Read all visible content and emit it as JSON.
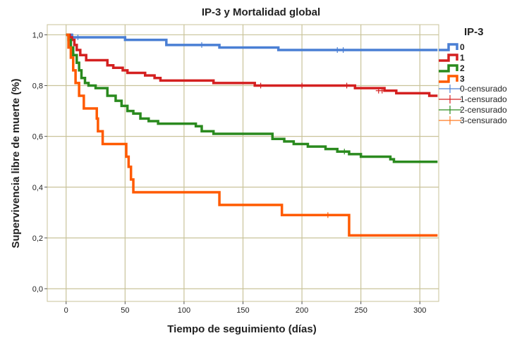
{
  "chart_data": {
    "type": "line",
    "step": true,
    "title": "IP-3 y Mortalidad global",
    "xlabel": "Tiempo de seguimiento (días)",
    "ylabel": "Supervivencia libre de muerte (%)",
    "xlim": [
      -16,
      316
    ],
    "ylim": [
      -0.05,
      1.04
    ],
    "xticks": [
      0,
      50,
      100,
      150,
      200,
      250,
      300
    ],
    "xtick_labels": [
      "0",
      "50",
      "100",
      "150",
      "200",
      "250",
      "300"
    ],
    "yticks": [
      0.0,
      0.2,
      0.4,
      0.6,
      0.8,
      1.0
    ],
    "ytick_labels": [
      "0,0",
      "0,2",
      "0,4",
      "0,6",
      "0,8",
      "1,0"
    ],
    "grid": true,
    "legend_title": "IP-3",
    "legend_position": "right",
    "series": [
      {
        "name": "0",
        "color": "#4a7fd4",
        "points": [
          [
            0,
            1.0
          ],
          [
            5,
            0.99
          ],
          [
            50,
            0.98
          ],
          [
            85,
            0.96
          ],
          [
            130,
            0.95
          ],
          [
            180,
            0.94
          ],
          [
            315,
            0.94
          ]
        ],
        "censored": [
          [
            10,
            0.99
          ],
          [
            115,
            0.96
          ],
          [
            230,
            0.94
          ],
          [
            235,
            0.94
          ]
        ]
      },
      {
        "name": "1",
        "color": "#d42020",
        "points": [
          [
            0,
            1.0
          ],
          [
            3,
            0.99
          ],
          [
            5,
            0.98
          ],
          [
            7,
            0.96
          ],
          [
            9,
            0.94
          ],
          [
            12,
            0.92
          ],
          [
            17,
            0.9
          ],
          [
            35,
            0.88
          ],
          [
            40,
            0.87
          ],
          [
            48,
            0.86
          ],
          [
            52,
            0.85
          ],
          [
            67,
            0.84
          ],
          [
            75,
            0.83
          ],
          [
            80,
            0.82
          ],
          [
            110,
            0.82
          ],
          [
            125,
            0.81
          ],
          [
            160,
            0.8
          ],
          [
            240,
            0.8
          ],
          [
            245,
            0.79
          ],
          [
            258,
            0.79
          ],
          [
            270,
            0.78
          ],
          [
            280,
            0.77
          ],
          [
            305,
            0.77
          ],
          [
            308,
            0.76
          ],
          [
            315,
            0.76
          ]
        ],
        "censored": [
          [
            165,
            0.8
          ],
          [
            200,
            0.8
          ],
          [
            238,
            0.8
          ],
          [
            265,
            0.78
          ],
          [
            268,
            0.78
          ]
        ]
      },
      {
        "name": "2",
        "color": "#2a8a1e",
        "points": [
          [
            0,
            1.0
          ],
          [
            2,
            0.98
          ],
          [
            4,
            0.95
          ],
          [
            6,
            0.92
          ],
          [
            9,
            0.89
          ],
          [
            11,
            0.86
          ],
          [
            13,
            0.83
          ],
          [
            16,
            0.81
          ],
          [
            19,
            0.8
          ],
          [
            25,
            0.79
          ],
          [
            35,
            0.76
          ],
          [
            42,
            0.74
          ],
          [
            47,
            0.72
          ],
          [
            52,
            0.7
          ],
          [
            57,
            0.69
          ],
          [
            63,
            0.67
          ],
          [
            70,
            0.66
          ],
          [
            78,
            0.65
          ],
          [
            110,
            0.64
          ],
          [
            115,
            0.62
          ],
          [
            125,
            0.61
          ],
          [
            175,
            0.59
          ],
          [
            185,
            0.58
          ],
          [
            193,
            0.57
          ],
          [
            205,
            0.56
          ],
          [
            220,
            0.55
          ],
          [
            230,
            0.54
          ],
          [
            240,
            0.53
          ],
          [
            250,
            0.52
          ],
          [
            275,
            0.51
          ],
          [
            278,
            0.5
          ],
          [
            315,
            0.5
          ]
        ],
        "censored": [
          [
            236,
            0.54
          ]
        ]
      },
      {
        "name": "3",
        "color": "#ff5a00",
        "points": [
          [
            0,
            1.0
          ],
          [
            2,
            0.95
          ],
          [
            4,
            0.91
          ],
          [
            6,
            0.86
          ],
          [
            8,
            0.81
          ],
          [
            11,
            0.76
          ],
          [
            15,
            0.71
          ],
          [
            26,
            0.67
          ],
          [
            27,
            0.62
          ],
          [
            31,
            0.57
          ],
          [
            51,
            0.52
          ],
          [
            53,
            0.48
          ],
          [
            55,
            0.43
          ],
          [
            57,
            0.38
          ],
          [
            130,
            0.33
          ],
          [
            183,
            0.29
          ],
          [
            240,
            0.21
          ],
          [
            315,
            0.21
          ]
        ],
        "censored": [
          [
            222,
            0.29
          ]
        ]
      }
    ],
    "censored_legend": [
      {
        "name": "0-censurado",
        "color": "#4a7fd4"
      },
      {
        "name": "1-censurado",
        "color": "#d42020"
      },
      {
        "name": "2-censurado",
        "color": "#2a8a1e"
      },
      {
        "name": "3-censurado",
        "color": "#ff7a22"
      }
    ]
  }
}
